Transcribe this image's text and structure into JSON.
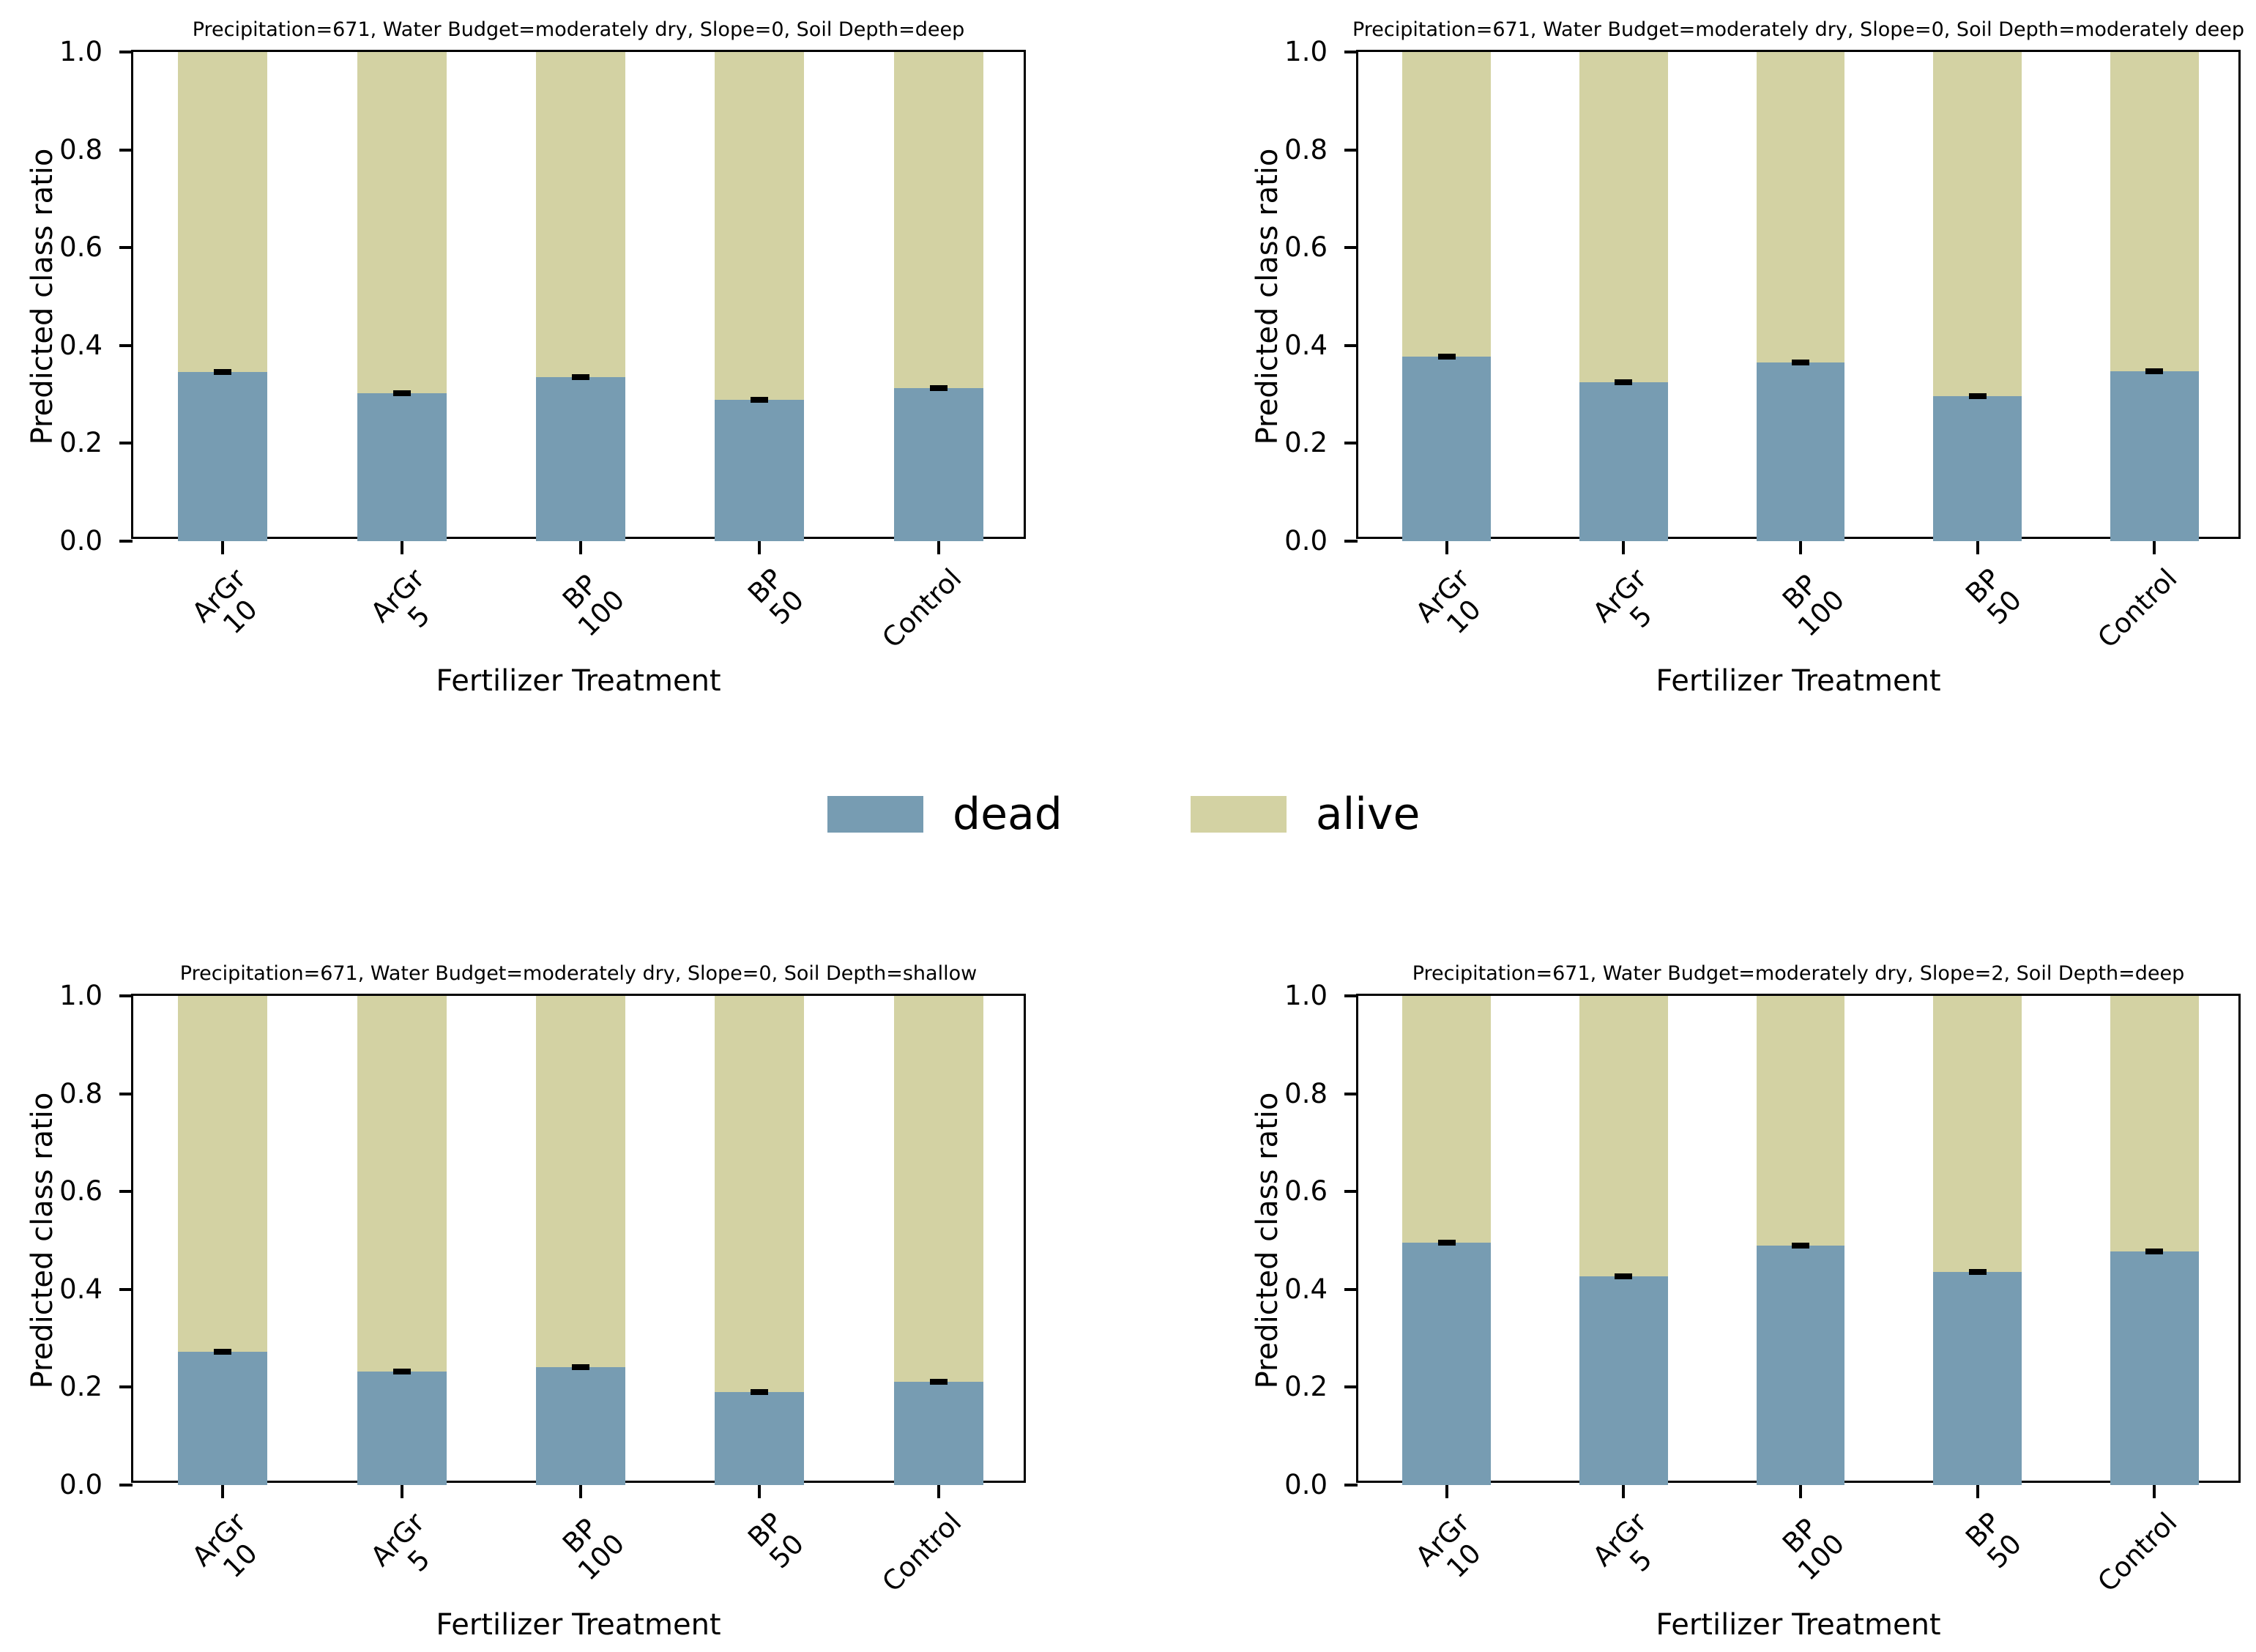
{
  "figure": {
    "ylabel": "Predicted class ratio",
    "xlabel": "Fertilizer Treatment",
    "yticks": [
      "0.0",
      "0.2",
      "0.4",
      "0.6",
      "0.8",
      "1.0"
    ],
    "legend": {
      "items": [
        {
          "label": "dead",
          "color": "#779cb2"
        },
        {
          "label": "alive",
          "color": "#d3d2a3"
        }
      ]
    },
    "colors": {
      "dead": "#779cb2",
      "alive": "#d3d2a3",
      "errorbar": "#000000",
      "spine": "#000000"
    }
  },
  "chart_data": [
    {
      "type": "bar",
      "subtype": "stacked",
      "title": "Precipitation=671, Water Budget=moderately dry, Slope=0, Soil Depth=deep",
      "xlabel": "Fertilizer Treatment",
      "ylabel": "Predicted class ratio",
      "ylim": [
        0.0,
        1.0
      ],
      "categories": [
        "ArGr 10",
        "ArGr 5",
        "BP 100",
        "BP 50",
        "Control"
      ],
      "category_lines": [
        [
          "ArGr",
          "10"
        ],
        [
          "ArGr",
          "5"
        ],
        [
          "BP",
          "100"
        ],
        [
          "BP",
          "50"
        ],
        [
          "Control"
        ]
      ],
      "series": [
        {
          "name": "dead",
          "values": [
            0.346,
            0.303,
            0.335,
            0.289,
            0.313
          ],
          "errors": [
            0.005,
            0.004,
            0.005,
            0.004,
            0.004
          ]
        },
        {
          "name": "alive",
          "values": [
            0.654,
            0.697,
            0.665,
            0.711,
            0.687
          ]
        }
      ]
    },
    {
      "type": "bar",
      "subtype": "stacked",
      "title": "Precipitation=671, Water Budget=moderately dry, Slope=0, Soil Depth=moderately deep",
      "xlabel": "Fertilizer Treatment",
      "ylabel": "Predicted class ratio",
      "ylim": [
        0.0,
        1.0
      ],
      "categories": [
        "ArGr 10",
        "ArGr 5",
        "BP 100",
        "BP 50",
        "Control"
      ],
      "category_lines": [
        [
          "ArGr",
          "10"
        ],
        [
          "ArGr",
          "5"
        ],
        [
          "BP",
          "100"
        ],
        [
          "BP",
          "50"
        ],
        [
          "Control"
        ]
      ],
      "series": [
        {
          "name": "dead",
          "values": [
            0.377,
            0.325,
            0.365,
            0.296,
            0.347
          ],
          "errors": [
            0.005,
            0.004,
            0.004,
            0.005,
            0.004
          ]
        },
        {
          "name": "alive",
          "values": [
            0.623,
            0.675,
            0.635,
            0.704,
            0.653
          ]
        }
      ]
    },
    {
      "type": "bar",
      "subtype": "stacked",
      "title": "Precipitation=671, Water Budget=moderately dry, Slope=0, Soil Depth=shallow",
      "xlabel": "Fertilizer Treatment",
      "ylabel": "Predicted class ratio",
      "ylim": [
        0.0,
        1.0
      ],
      "categories": [
        "ArGr 10",
        "ArGr 5",
        "BP 100",
        "BP 50",
        "Control"
      ],
      "category_lines": [
        [
          "ArGr",
          "10"
        ],
        [
          "ArGr",
          "5"
        ],
        [
          "BP",
          "100"
        ],
        [
          "BP",
          "50"
        ],
        [
          "Control"
        ]
      ],
      "series": [
        {
          "name": "dead",
          "values": [
            0.272,
            0.232,
            0.241,
            0.19,
            0.211
          ],
          "errors": [
            0.005,
            0.004,
            0.005,
            0.004,
            0.004
          ]
        },
        {
          "name": "alive",
          "values": [
            0.728,
            0.768,
            0.759,
            0.81,
            0.789
          ]
        }
      ]
    },
    {
      "type": "bar",
      "subtype": "stacked",
      "title": "Precipitation=671, Water Budget=moderately dry, Slope=2, Soil Depth=deep",
      "xlabel": "Fertilizer Treatment",
      "ylabel": "Predicted class ratio",
      "ylim": [
        0.0,
        1.0
      ],
      "categories": [
        "ArGr 10",
        "ArGr 5",
        "BP 100",
        "BP 50",
        "Control"
      ],
      "category_lines": [
        [
          "ArGr",
          "10"
        ],
        [
          "ArGr",
          "5"
        ],
        [
          "BP",
          "100"
        ],
        [
          "BP",
          "50"
        ],
        [
          "Control"
        ]
      ],
      "series": [
        {
          "name": "dead",
          "values": [
            0.496,
            0.426,
            0.49,
            0.435,
            0.477
          ],
          "errors": [
            0.005,
            0.004,
            0.004,
            0.004,
            0.004
          ]
        },
        {
          "name": "alive",
          "values": [
            0.504,
            0.574,
            0.51,
            0.565,
            0.523
          ]
        }
      ]
    }
  ]
}
